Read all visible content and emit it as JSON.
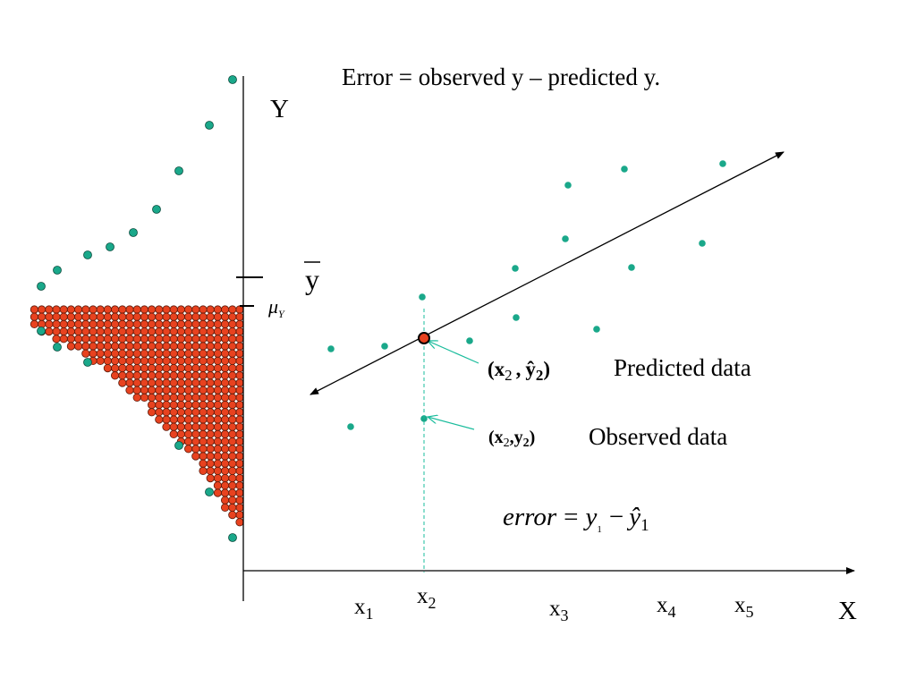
{
  "title": "Error = observed y – predicted y.",
  "axes": {
    "y_label": "Y",
    "x_label": "X"
  },
  "y_markers": {
    "sample_mean": "y",
    "population_mean": {
      "symbol": "μ",
      "subscript": "Y"
    }
  },
  "x_ticks": [
    {
      "base": "x",
      "sub": "1"
    },
    {
      "base": "x",
      "sub": "2"
    },
    {
      "base": "x",
      "sub": "3"
    },
    {
      "base": "x",
      "sub": "4"
    },
    {
      "base": "x",
      "sub": "5"
    }
  ],
  "predicted": {
    "open": "(",
    "x": "x",
    "x_sub": "2",
    "sep": ",",
    "y": "ŷ",
    "y_sub": "2",
    "close": ")",
    "label": "Predicted data"
  },
  "observed": {
    "open": "(",
    "x": "x",
    "x_sub": "2",
    "sep": ",",
    "y": "y",
    "y_sub": "2",
    "close": ")",
    "label": "Observed  data"
  },
  "formula": {
    "lhs": "error",
    "eq": "=",
    "y": "y",
    "y_sub": "1",
    "minus": "−",
    "yhat": "ŷ",
    "yhat_sub": "1"
  }
}
